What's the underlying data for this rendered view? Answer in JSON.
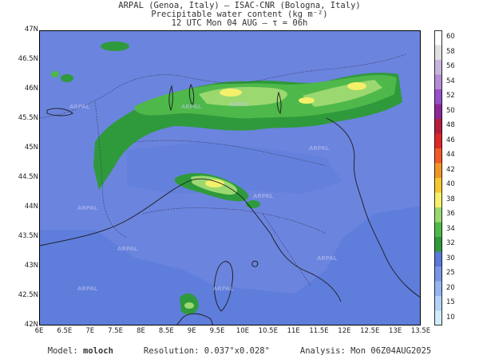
{
  "header": {
    "line1": "ARPAL (Genoa, Italy)  —  ISAC-CNR (Bologna, Italy)",
    "line2": "Precipitable water content (kg m⁻²)",
    "line3": "12 UTC Mon 04 AUG  —  τ = 06h"
  },
  "map": {
    "lat_labels": [
      "47N",
      "46.5N",
      "46N",
      "45.5N",
      "45N",
      "44.5N",
      "44N",
      "43.5N",
      "43N",
      "42.5N",
      "42N"
    ],
    "lon_labels": [
      "6E",
      "6.5E",
      "7E",
      "7.5E",
      "8E",
      "8.5E",
      "9E",
      "9.5E",
      "10E",
      "10.5E",
      "11E",
      "11.5E",
      "12E",
      "12.5E",
      "13E",
      "13.5E"
    ],
    "watermark": "ARPAL",
    "colors": {
      "background_field": "#6b84de",
      "low": "#5a78d8",
      "green_dark": "#2f9a3c",
      "green_mid": "#4fb84a",
      "green_light": "#9bd870",
      "yellow": "#f4f06a"
    }
  },
  "colorbar": {
    "labels": [
      "60",
      "58",
      "56",
      "54",
      "52",
      "50",
      "48",
      "46",
      "44",
      "42",
      "40",
      "38",
      "36",
      "34",
      "32",
      "30",
      "25",
      "20",
      "15",
      "10"
    ],
    "colors": [
      "#ffffff",
      "#e0e0e0",
      "#c8b4dc",
      "#b48cd2",
      "#9650c8",
      "#8c2896",
      "#b41e3c",
      "#dc2828",
      "#f05a28",
      "#f09628",
      "#f4c832",
      "#f4f06a",
      "#9bd870",
      "#4fb84a",
      "#2f9a3c",
      "#5a78d8",
      "#7896e6",
      "#96b4f0",
      "#b4d2f8",
      "#d2ebfc"
    ]
  },
  "footer": {
    "model_label": "Model:",
    "model_value": "moloch",
    "resolution": "Resolution: 0.037°x0.028°",
    "analysis": "Analysis: Mon 06Z04AUG2025"
  }
}
